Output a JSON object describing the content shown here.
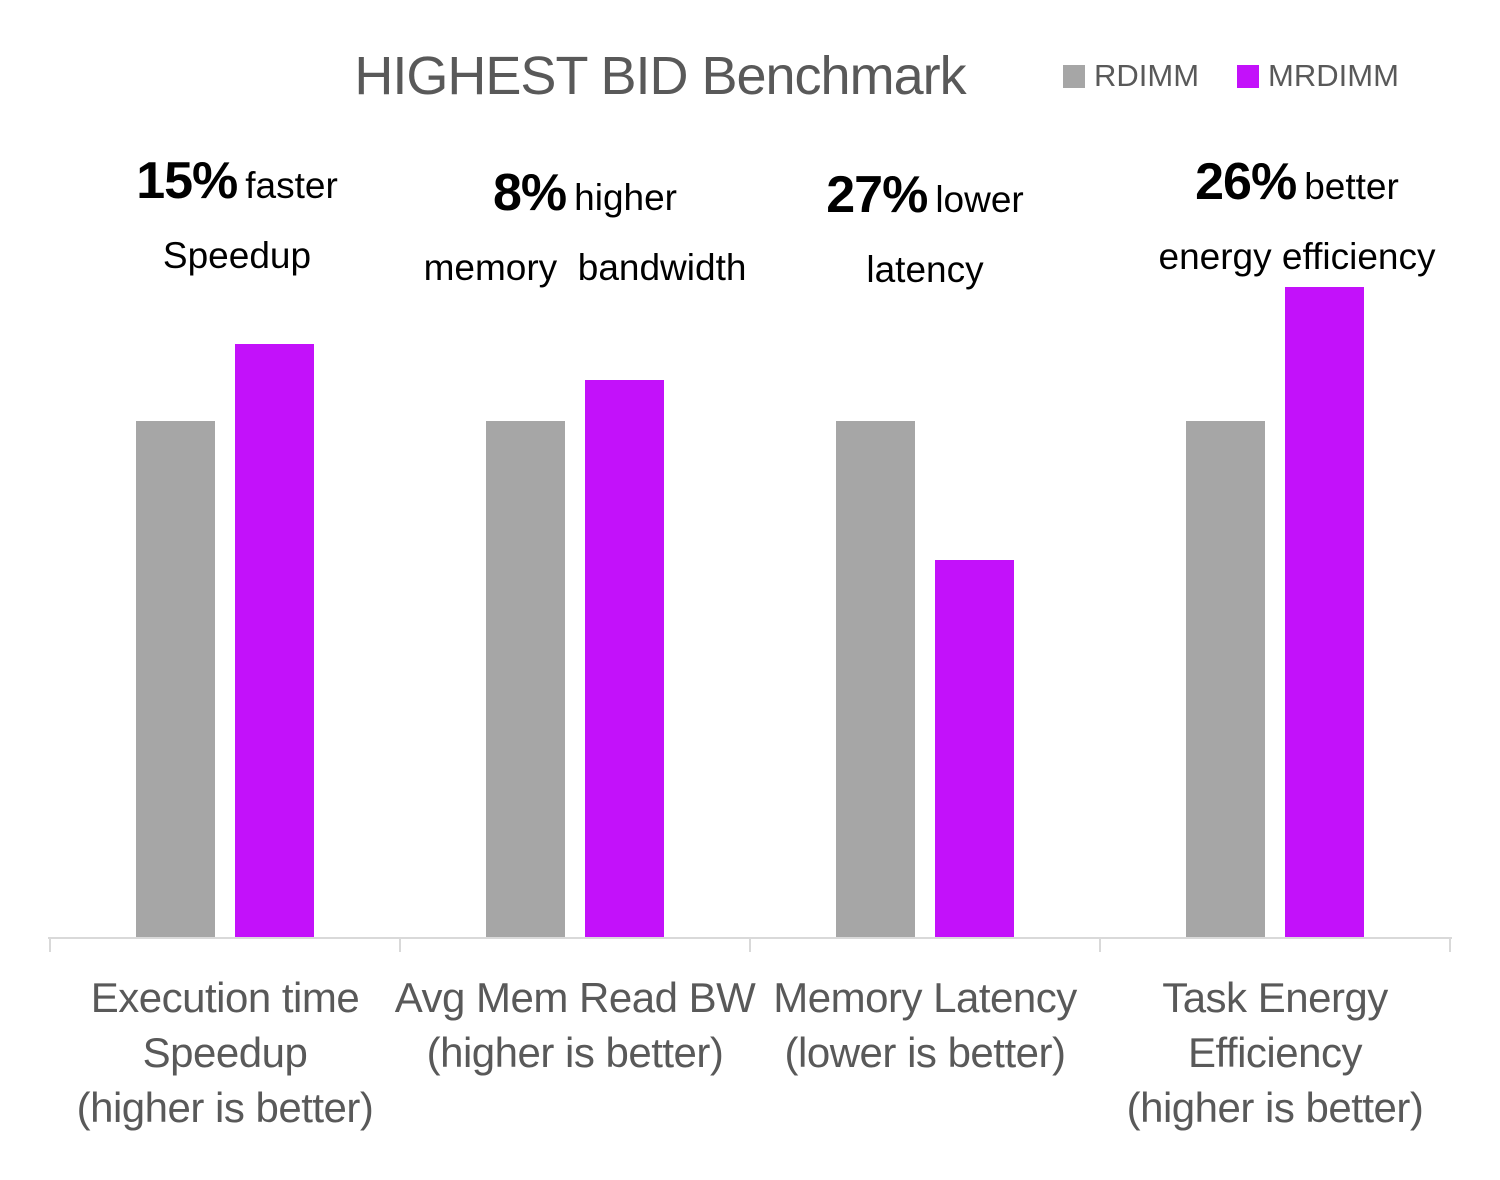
{
  "title": "HIGHEST BID Benchmark",
  "colors": {
    "rdimm_gray": "#a6a6a6",
    "mrdimm_magenta": "#c311fa",
    "axis_line": "#d9d9d9",
    "muted_text": "#595959",
    "annotation_text": "#000000"
  },
  "legend": {
    "items": [
      {
        "label": "RDIMM",
        "color": "#a6a6a6"
      },
      {
        "label": "MRDIMM",
        "color": "#c311fa"
      }
    ]
  },
  "chart_data": {
    "type": "bar",
    "title": "HIGHEST BID Benchmark",
    "legend_position": "top-right",
    "grid": false,
    "y_axis_visible": false,
    "ylim": [
      0,
      1.3
    ],
    "value_basis": "normalized, RDIMM = 1.0",
    "categories": [
      "Execution time Speedup (higher is better)",
      "Avg Mem Read BW (higher is better)",
      "Memory Latency (lower is better)",
      "Task Energy Efficiency (higher is better)"
    ],
    "series": [
      {
        "name": "RDIMM",
        "color": "#a6a6a6",
        "values": [
          1.0,
          1.0,
          1.0,
          1.0
        ]
      },
      {
        "name": "MRDIMM",
        "color": "#c311fa",
        "values": [
          1.15,
          1.08,
          0.73,
          1.26
        ]
      }
    ],
    "groups": [
      {
        "label_lines": [
          "Execution time",
          "Speedup",
          "(higher is better)"
        ],
        "annotation": {
          "value": "15%",
          "qualifier": "faster",
          "detail": "Speedup"
        }
      },
      {
        "label_lines": [
          "Avg Mem Read BW",
          "(higher is better)"
        ],
        "annotation": {
          "value": "8%",
          "qualifier": "higher",
          "detail": "memory  bandwidth"
        }
      },
      {
        "label_lines": [
          "Memory Latency",
          "(lower is better)"
        ],
        "annotation": {
          "value": "27%",
          "qualifier": "lower",
          "detail": "latency"
        }
      },
      {
        "label_lines": [
          "Task Energy",
          "Efficiency",
          "(higher is better)"
        ],
        "annotation": {
          "value": "26%",
          "qualifier": "better",
          "detail": "energy efficiency"
        }
      }
    ]
  }
}
